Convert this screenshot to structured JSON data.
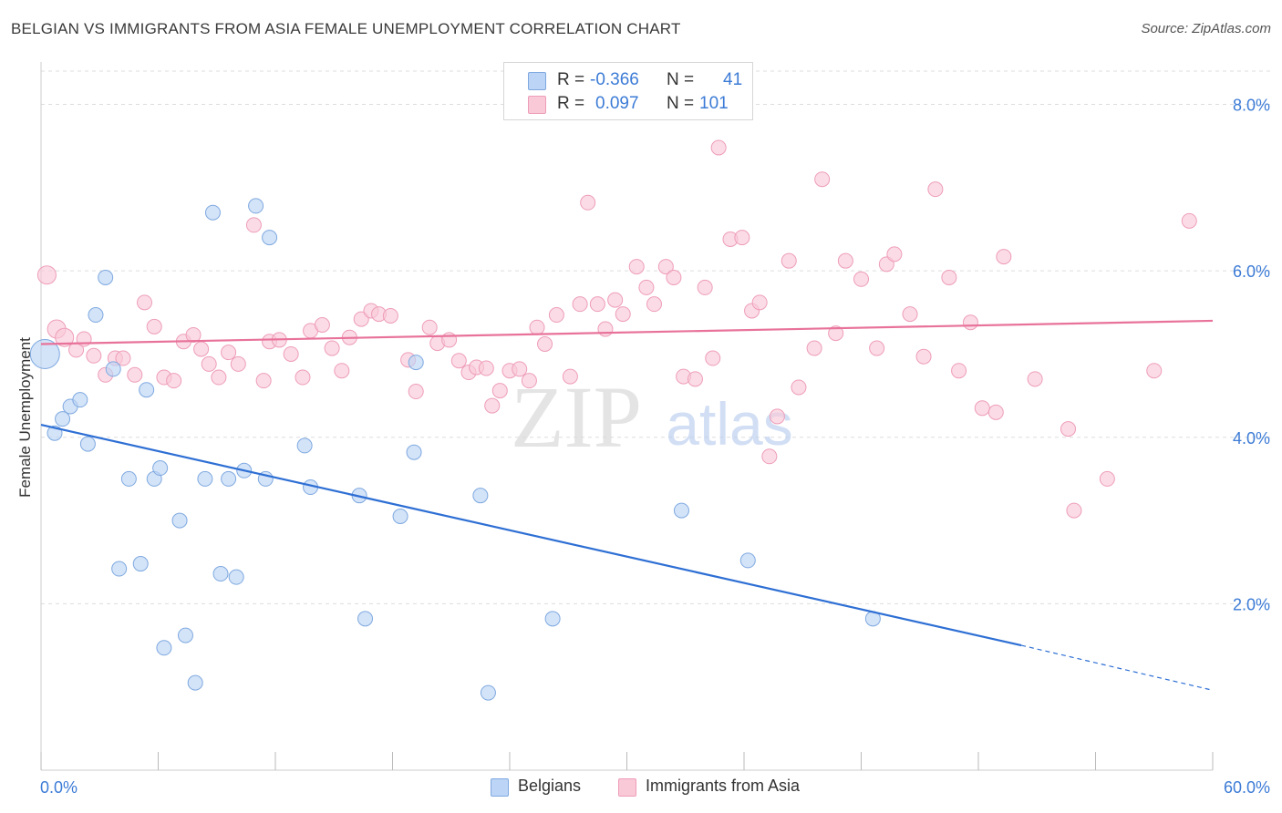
{
  "title": "BELGIAN VS IMMIGRANTS FROM ASIA FEMALE UNEMPLOYMENT CORRELATION CHART",
  "source": "Source: ZipAtlas.com",
  "watermark": {
    "zip": "ZIP",
    "atlas": "atlas"
  },
  "colors": {
    "blue_fill": "#bcd4f5",
    "blue_stroke": "#7fa9e0",
    "blue_line": "#2e6fd4",
    "pink_fill": "#f9c9d8",
    "pink_stroke": "#ee9db8",
    "pink_line": "#e8729a",
    "tick_label": "#3c7bd6",
    "grid": "#dddddd"
  },
  "legend_top": [
    {
      "r_label": "R =",
      "r_value": "-0.366",
      "n_label": "N =",
      "n_value": "41",
      "color": "#bcd4f5"
    },
    {
      "r_label": "R =",
      "r_value": "0.097",
      "n_label": "N =",
      "n_value": "101",
      "color": "#f9c9d8"
    }
  ],
  "legend_bottom": [
    "Belgians",
    "Immigrants from Asia"
  ],
  "chart_data": {
    "type": "scatter",
    "title": "BELGIAN VS IMMIGRANTS FROM ASIA FEMALE UNEMPLOYMENT CORRELATION CHART",
    "xlabel": "",
    "ylabel": "Female Unemployment",
    "xlim": [
      0,
      60
    ],
    "ylim": [
      0,
      8.4
    ],
    "x_tick_labels": [
      "0.0%",
      "60.0%"
    ],
    "y_ticks": [
      2.0,
      4.0,
      6.0,
      8.0
    ],
    "y_tick_labels": [
      "2.0%",
      "4.0%",
      "6.0%",
      "8.0%"
    ],
    "grid": true,
    "legend_position": "top-center",
    "series": [
      {
        "name": "Belgians",
        "color": "#bcd4f5",
        "r": -0.366,
        "n": 41,
        "trend": {
          "x0": 0,
          "y0": 4.15,
          "x1": 50.2,
          "y1": 1.5,
          "dash_to_x": 60,
          "dash_to_y": 0.96
        },
        "points": [
          [
            0.2,
            5.0,
            "large"
          ],
          [
            0.7,
            4.05
          ],
          [
            1.1,
            4.22
          ],
          [
            1.5,
            4.37
          ],
          [
            2.0,
            4.45
          ],
          [
            2.4,
            3.92
          ],
          [
            2.8,
            5.47
          ],
          [
            3.3,
            5.92
          ],
          [
            3.7,
            4.82
          ],
          [
            4.0,
            2.42
          ],
          [
            4.5,
            3.5
          ],
          [
            5.1,
            2.48
          ],
          [
            5.4,
            4.57
          ],
          [
            5.8,
            3.5
          ],
          [
            6.1,
            3.63
          ],
          [
            6.3,
            1.47
          ],
          [
            7.1,
            3.0
          ],
          [
            7.4,
            1.62
          ],
          [
            7.9,
            1.05
          ],
          [
            8.4,
            3.5
          ],
          [
            8.8,
            6.7
          ],
          [
            9.2,
            2.36
          ],
          [
            9.6,
            3.5
          ],
          [
            10.0,
            2.32
          ],
          [
            10.4,
            3.6
          ],
          [
            11.0,
            6.78
          ],
          [
            11.5,
            3.5
          ],
          [
            11.7,
            6.4
          ],
          [
            13.5,
            3.9
          ],
          [
            13.8,
            3.4
          ],
          [
            16.3,
            3.3
          ],
          [
            16.6,
            1.82
          ],
          [
            18.4,
            3.05
          ],
          [
            19.1,
            3.82
          ],
          [
            19.2,
            4.9
          ],
          [
            22.5,
            3.3
          ],
          [
            22.9,
            0.93
          ],
          [
            26.2,
            1.82
          ],
          [
            32.8,
            3.12
          ],
          [
            36.2,
            2.52
          ],
          [
            42.6,
            1.82
          ]
        ]
      },
      {
        "name": "Immigrants from Asia",
        "color": "#f9c9d8",
        "r": 0.097,
        "n": 101,
        "trend": {
          "x0": 0,
          "y0": 5.12,
          "x1": 60,
          "y1": 5.4
        },
        "points": [
          [
            0.3,
            5.95,
            "medium"
          ],
          [
            0.8,
            5.3,
            "medium"
          ],
          [
            1.2,
            5.2,
            "medium"
          ],
          [
            1.8,
            5.05
          ],
          [
            2.2,
            5.18
          ],
          [
            2.7,
            4.98
          ],
          [
            3.3,
            4.75
          ],
          [
            3.8,
            4.95
          ],
          [
            4.2,
            4.95
          ],
          [
            4.8,
            4.75
          ],
          [
            5.3,
            5.62
          ],
          [
            5.8,
            5.33
          ],
          [
            6.3,
            4.72
          ],
          [
            6.8,
            4.68
          ],
          [
            7.3,
            5.15
          ],
          [
            7.8,
            5.23
          ],
          [
            8.2,
            5.06
          ],
          [
            8.6,
            4.88
          ],
          [
            9.1,
            4.72
          ],
          [
            9.6,
            5.02
          ],
          [
            10.1,
            4.88
          ],
          [
            10.9,
            6.55
          ],
          [
            11.4,
            4.68
          ],
          [
            11.7,
            5.15
          ],
          [
            12.2,
            5.17
          ],
          [
            12.8,
            5.0
          ],
          [
            13.4,
            4.72
          ],
          [
            13.8,
            5.28
          ],
          [
            14.4,
            5.35
          ],
          [
            14.9,
            5.07
          ],
          [
            15.4,
            4.8
          ],
          [
            15.8,
            5.2
          ],
          [
            16.4,
            5.42
          ],
          [
            16.9,
            5.52
          ],
          [
            17.3,
            5.48
          ],
          [
            17.9,
            5.46
          ],
          [
            18.8,
            4.93
          ],
          [
            19.2,
            4.55
          ],
          [
            19.9,
            5.32
          ],
          [
            20.3,
            5.13
          ],
          [
            20.9,
            5.17
          ],
          [
            21.4,
            4.92
          ],
          [
            21.9,
            4.78
          ],
          [
            22.3,
            4.84
          ],
          [
            22.8,
            4.83
          ],
          [
            23.1,
            4.38
          ],
          [
            23.5,
            4.56
          ],
          [
            24.0,
            4.8
          ],
          [
            24.5,
            4.82
          ],
          [
            25.0,
            4.68
          ],
          [
            25.4,
            5.32
          ],
          [
            25.8,
            5.12
          ],
          [
            26.4,
            5.47
          ],
          [
            27.1,
            4.73
          ],
          [
            27.6,
            5.6
          ],
          [
            28.0,
            6.82
          ],
          [
            28.5,
            5.6
          ],
          [
            28.9,
            5.3
          ],
          [
            29.4,
            5.65
          ],
          [
            29.8,
            5.48
          ],
          [
            30.5,
            6.05
          ],
          [
            31.0,
            5.8
          ],
          [
            31.4,
            5.6
          ],
          [
            32.0,
            6.05
          ],
          [
            32.4,
            5.92
          ],
          [
            32.9,
            4.73
          ],
          [
            33.5,
            4.7
          ],
          [
            34.0,
            5.8
          ],
          [
            34.4,
            4.95
          ],
          [
            34.7,
            7.48
          ],
          [
            35.3,
            6.38
          ],
          [
            35.9,
            6.4
          ],
          [
            36.4,
            5.52
          ],
          [
            36.8,
            5.62
          ],
          [
            37.3,
            3.77
          ],
          [
            37.7,
            4.25
          ],
          [
            38.3,
            6.12
          ],
          [
            38.8,
            4.6
          ],
          [
            39.6,
            5.07
          ],
          [
            40.0,
            7.1
          ],
          [
            40.7,
            5.25
          ],
          [
            41.2,
            6.12
          ],
          [
            42.0,
            5.9
          ],
          [
            42.8,
            5.07
          ],
          [
            43.3,
            6.08
          ],
          [
            43.7,
            6.2
          ],
          [
            44.5,
            5.48
          ],
          [
            45.2,
            4.97
          ],
          [
            45.8,
            6.98
          ],
          [
            46.5,
            5.92
          ],
          [
            47.0,
            4.8
          ],
          [
            47.6,
            5.38
          ],
          [
            48.2,
            4.35
          ],
          [
            48.9,
            4.3
          ],
          [
            49.3,
            6.17
          ],
          [
            50.9,
            4.7
          ],
          [
            52.6,
            4.1
          ],
          [
            52.9,
            3.12
          ],
          [
            54.6,
            3.5
          ],
          [
            57.0,
            4.8
          ],
          [
            58.8,
            6.6
          ]
        ]
      }
    ]
  }
}
